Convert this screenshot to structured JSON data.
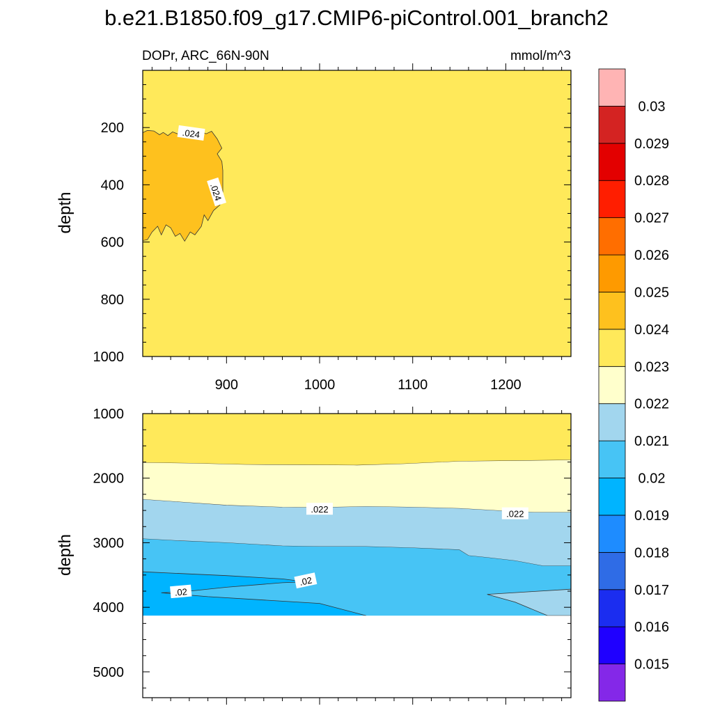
{
  "chart_data": {
    "type": "contour",
    "title": "b.e21.B1850.f09_g17.CMIP6-piControl.001_branch2",
    "variable": "DOPr, ARC_66N-90N",
    "units": "mmol/m^3",
    "x_ticks": [
      900,
      1000,
      1100,
      1200
    ],
    "xlim": [
      810,
      1270
    ],
    "colorbar": {
      "levels": [
        "0.015",
        "0.016",
        "0.017",
        "0.018",
        "0.019",
        "0.02",
        "0.021",
        "0.022",
        "0.023",
        "0.024",
        "0.025",
        "0.026",
        "0.027",
        "0.028",
        "0.029",
        "0.03"
      ],
      "colors": [
        "#8428e8",
        "#1f00ff",
        "#1b2df0",
        "#2f6ce6",
        "#1e8cff",
        "#00b4ff",
        "#47c4f5",
        "#a2d6ee",
        "#ffffcc",
        "#ffe95a",
        "#fec11e",
        "#fe9a00",
        "#ff6e00",
        "#ff1e00",
        "#e30000",
        "#d42322",
        "#ffb4b4"
      ]
    },
    "panels": [
      {
        "ylabel": "depth",
        "ylim": [
          1000,
          0
        ],
        "y_ticks": [
          200,
          400,
          600,
          800,
          1000
        ],
        "background_color": "#ffe95a",
        "regions": [
          {
            "range": ">0.024",
            "color": "#fec11e",
            "boundary": [
              [
                810,
                218
              ],
              [
                815,
                210
              ],
              [
                822,
                212
              ],
              [
                828,
                225
              ],
              [
                832,
                217
              ],
              [
                837,
                228
              ],
              [
                842,
                215
              ],
              [
                850,
                225
              ],
              [
                858,
                215
              ],
              [
                865,
                225
              ],
              [
                872,
                212
              ],
              [
                878,
                222
              ],
              [
                884,
                213
              ],
              [
                890,
                240
              ],
              [
                895,
                272
              ],
              [
                890,
                292
              ],
              [
                895,
                318
              ],
              [
                896,
                350
              ],
              [
                896,
                430
              ],
              [
                893,
                470
              ],
              [
                886,
                490
              ],
              [
                880,
                525
              ],
              [
                876,
                505
              ],
              [
                873,
                545
              ],
              [
                866,
                575
              ],
              [
                861,
                565
              ],
              [
                855,
                597
              ],
              [
                850,
                570
              ],
              [
                845,
                580
              ],
              [
                840,
                550
              ],
              [
                835,
                540
              ],
              [
                830,
                575
              ],
              [
                826,
                545
              ],
              [
                820,
                565
              ],
              [
                815,
                592
              ],
              [
                810,
                595
              ]
            ]
          }
        ],
        "contour_labels": [
          {
            "text": ".024",
            "x": 862,
            "y": 220,
            "angle": 8
          },
          {
            "text": ".024",
            "x": 889,
            "y": 425,
            "angle": 72
          }
        ]
      },
      {
        "ylabel": "depth",
        "ylim": [
          5400,
          1000
        ],
        "y_ticks": [
          1000,
          2000,
          3000,
          4000,
          5000
        ],
        "ocean_bottom": 4130,
        "regions": [
          {
            "range": "0.023-0.024",
            "color": "#ffe95a",
            "top": [
              [
                810,
                1000
              ],
              [
                1270,
                1000
              ]
            ],
            "bottom": [
              [
                810,
                1760
              ],
              [
                860,
                1770
              ],
              [
                920,
                1790
              ],
              [
                980,
                1795
              ],
              [
                1040,
                1800
              ],
              [
                1090,
                1780
              ],
              [
                1150,
                1740
              ],
              [
                1210,
                1730
              ],
              [
                1270,
                1720
              ]
            ]
          },
          {
            "range": "0.022-0.023",
            "color": "#ffffcc",
            "bottom": [
              [
                810,
                2330
              ],
              [
                850,
                2370
              ],
              [
                900,
                2420
              ],
              [
                960,
                2450
              ],
              [
                1000,
                2455
              ],
              [
                1050,
                2440
              ],
              [
                1100,
                2450
              ],
              [
                1150,
                2470
              ],
              [
                1200,
                2510
              ],
              [
                1230,
                2530
              ],
              [
                1270,
                2530
              ]
            ]
          },
          {
            "range": "0.021-0.022",
            "color": "#a2d6ee",
            "bottom": [
              [
                810,
                2940
              ],
              [
                850,
                2970
              ],
              [
                900,
                3000
              ],
              [
                960,
                3050
              ],
              [
                1000,
                3060
              ],
              [
                1050,
                3060
              ],
              [
                1100,
                3080
              ],
              [
                1150,
                3110
              ],
              [
                1160,
                3200
              ],
              [
                1180,
                3230
              ],
              [
                1210,
                3280
              ],
              [
                1240,
                3360
              ],
              [
                1270,
                3360
              ]
            ]
          },
          {
            "range": "0.020-0.021",
            "color": "#47c4f5",
            "bottom": [
              [
                810,
                3450
              ],
              [
                900,
                3510
              ],
              [
                960,
                3560
              ],
              [
                985,
                3605
              ],
              [
                960,
                3620
              ],
              [
                900,
                3690
              ],
              [
                850,
                3765
              ],
              [
                830,
                3775
              ],
              [
                880,
                3835
              ],
              [
                1000,
                3940
              ],
              [
                1050,
                4130
              ],
              [
                810,
                4130
              ]
            ]
          },
          {
            "range": "0.019-0.020",
            "color": "#00b4ff"
          },
          {
            "range": "0.021-0.022",
            "color": "#a2d6ee",
            "boundary": [
              [
                1225,
                3760
              ],
              [
                1270,
                3720
              ],
              [
                1270,
                4130
              ],
              [
                1245,
                4130
              ],
              [
                1210,
                3920
              ],
              [
                1180,
                3800
              ]
            ]
          }
        ],
        "contour_labels": [
          {
            "text": ".022",
            "x": 1000,
            "y": 2480,
            "angle": 0
          },
          {
            "text": ".022",
            "x": 1210,
            "y": 2550,
            "angle": 0
          },
          {
            "text": ".02",
            "x": 985,
            "y": 3590,
            "angle": -12
          },
          {
            "text": ".02",
            "x": 851,
            "y": 3760,
            "angle": -5
          }
        ]
      }
    ]
  }
}
